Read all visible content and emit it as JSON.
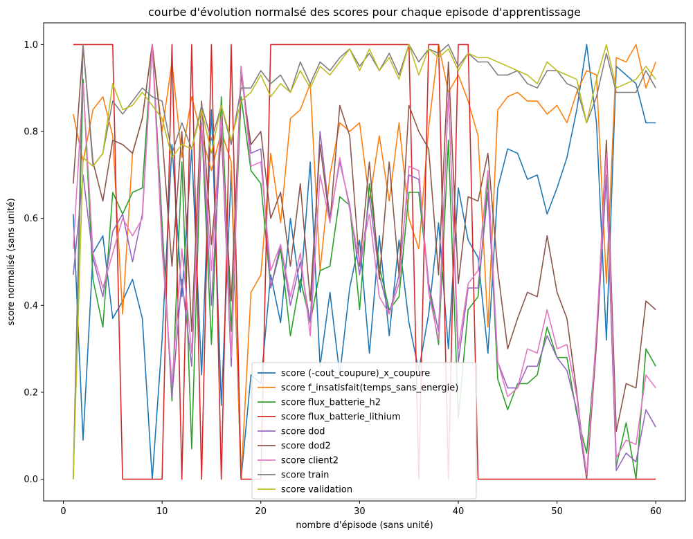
{
  "chart_data": {
    "type": "line",
    "title": "courbe d'évolution normalsé des scores pour chaque episode d'apprentissage",
    "xlabel": "nombre d'épisode (sans unité)",
    "ylabel": "score normalisé (sans unité)",
    "xlim": [
      -2,
      63
    ],
    "ylim": [
      -0.05,
      1.05
    ],
    "xticks": [
      0,
      10,
      20,
      30,
      40,
      50,
      60
    ],
    "yticks": [
      0.0,
      0.2,
      0.4,
      0.6,
      0.8,
      1.0
    ],
    "xtick_labels": [
      "0",
      "10",
      "20",
      "30",
      "40",
      "50",
      "60"
    ],
    "ytick_labels": [
      "0.0",
      "0.2",
      "0.4",
      "0.6",
      "0.8",
      "1.0"
    ],
    "grid": false,
    "legend_position": "bottom-center",
    "x": [
      1,
      2,
      3,
      4,
      5,
      6,
      7,
      8,
      9,
      10,
      11,
      12,
      13,
      14,
      15,
      16,
      17,
      18,
      19,
      20,
      21,
      22,
      23,
      24,
      25,
      26,
      27,
      28,
      29,
      30,
      31,
      32,
      33,
      34,
      35,
      36,
      37,
      38,
      39,
      40,
      41,
      42,
      43,
      44,
      45,
      46,
      47,
      48,
      49,
      50,
      51,
      52,
      53,
      54,
      55,
      56,
      57,
      58,
      59,
      60
    ],
    "series": [
      {
        "name": "score (-cout_coupure)_x_coupure",
        "color": "#1f77b4",
        "values": [
          0.61,
          0.09,
          0.52,
          0.56,
          0.37,
          0.41,
          0.46,
          0.37,
          0.0,
          0.32,
          0.77,
          0.42,
          0.76,
          0.24,
          0.85,
          0.17,
          0.71,
          0.0,
          0.24,
          0.22,
          0.47,
          0.36,
          0.6,
          0.43,
          0.73,
          0.26,
          0.43,
          0.24,
          0.44,
          0.55,
          0.29,
          0.56,
          0.33,
          0.55,
          0.36,
          0.25,
          0.38,
          0.59,
          0.3,
          0.67,
          0.55,
          0.51,
          0.29,
          0.67,
          0.76,
          0.75,
          0.69,
          0.7,
          0.61,
          0.67,
          0.74,
          0.85,
          1.0,
          0.82,
          0.32,
          0.95,
          0.93,
          0.91,
          0.82,
          0.82
        ]
      },
      {
        "name": "score f_insatisfait(temps_sans_energie)",
        "color": "#ff7f0e",
        "values": [
          0.84,
          0.73,
          0.85,
          0.88,
          0.79,
          0.38,
          0.75,
          0.83,
          1.0,
          0.8,
          0.96,
          0.74,
          0.88,
          0.79,
          0.71,
          0.8,
          0.73,
          0.0,
          0.43,
          0.47,
          0.75,
          0.59,
          0.83,
          0.85,
          0.91,
          0.48,
          0.7,
          0.82,
          0.8,
          0.82,
          0.64,
          0.79,
          0.64,
          0.82,
          0.6,
          0.53,
          0.81,
          1.0,
          0.89,
          0.93,
          0.87,
          0.79,
          0.35,
          0.85,
          0.88,
          0.89,
          0.87,
          0.87,
          0.84,
          0.86,
          0.82,
          0.89,
          0.94,
          0.93,
          0.45,
          0.97,
          0.96,
          1.0,
          0.9,
          0.96
        ]
      },
      {
        "name": "score flux_batterie_h2",
        "color": "#2ca02c",
        "values": [
          0.0,
          0.92,
          0.46,
          0.35,
          0.66,
          0.61,
          0.66,
          0.67,
          1.0,
          0.59,
          0.18,
          0.73,
          0.07,
          0.82,
          0.31,
          0.88,
          0.34,
          0.88,
          0.71,
          0.68,
          0.44,
          0.53,
          0.33,
          0.46,
          0.36,
          0.48,
          0.49,
          0.65,
          0.63,
          0.39,
          0.68,
          0.49,
          0.39,
          0.42,
          0.66,
          0.66,
          0.45,
          0.31,
          0.78,
          0.14,
          0.39,
          0.42,
          0.69,
          0.23,
          0.16,
          0.22,
          0.22,
          0.24,
          0.35,
          0.28,
          0.28,
          0.15,
          0.06,
          0.32,
          0.7,
          0.03,
          0.13,
          0.0,
          0.3,
          0.26
        ]
      },
      {
        "name": "score flux_batterie_lithium",
        "color": "#d62728",
        "values": [
          1.0,
          1.0,
          1.0,
          1.0,
          1.0,
          0.0,
          0.0,
          0.0,
          0.0,
          0.0,
          1.0,
          0.0,
          1.0,
          0.0,
          1.0,
          0.0,
          1.0,
          0.0,
          0.0,
          0.0,
          1.0,
          1.0,
          1.0,
          1.0,
          1.0,
          1.0,
          1.0,
          1.0,
          1.0,
          1.0,
          1.0,
          1.0,
          1.0,
          1.0,
          1.0,
          0.0,
          1.0,
          1.0,
          0.0,
          1.0,
          1.0,
          0.0,
          0.0,
          0.0,
          0.0,
          0.0,
          0.0,
          0.0,
          0.0,
          0.0,
          0.0,
          0.0,
          0.0,
          0.0,
          0.0,
          0.0,
          0.0,
          0.0,
          0.0,
          0.0
        ]
      },
      {
        "name": "score dod",
        "color": "#9467bd",
        "values": [
          0.47,
          0.7,
          0.51,
          0.42,
          0.57,
          0.61,
          0.5,
          0.61,
          1.0,
          0.56,
          0.19,
          0.46,
          0.26,
          0.82,
          0.4,
          0.81,
          0.26,
          0.95,
          0.75,
          0.76,
          0.44,
          0.54,
          0.4,
          0.5,
          0.36,
          0.8,
          0.6,
          0.73,
          0.63,
          0.47,
          0.65,
          0.47,
          0.38,
          0.47,
          0.7,
          0.69,
          0.45,
          0.34,
          0.89,
          0.27,
          0.44,
          0.44,
          0.66,
          0.27,
          0.21,
          0.21,
          0.26,
          0.26,
          0.33,
          0.28,
          0.25,
          0.16,
          0.0,
          0.31,
          0.7,
          0.02,
          0.06,
          0.04,
          0.16,
          0.12
        ]
      },
      {
        "name": "score dod2",
        "color": "#8c564b",
        "values": [
          0.68,
          1.0,
          0.73,
          0.64,
          0.78,
          0.77,
          0.75,
          0.83,
          1.0,
          0.79,
          0.49,
          0.8,
          0.34,
          0.87,
          0.54,
          0.79,
          0.41,
          0.93,
          0.77,
          0.8,
          0.6,
          0.66,
          0.49,
          0.68,
          0.41,
          0.77,
          0.59,
          0.86,
          0.79,
          0.49,
          0.73,
          0.46,
          0.73,
          0.47,
          0.86,
          0.8,
          0.76,
          0.47,
          0.96,
          0.45,
          0.65,
          0.64,
          0.75,
          0.48,
          0.3,
          0.37,
          0.43,
          0.42,
          0.56,
          0.43,
          0.37,
          0.2,
          0.0,
          0.32,
          0.78,
          0.11,
          0.22,
          0.21,
          0.41,
          0.39
        ]
      },
      {
        "name": "score client2",
        "color": "#e377c2",
        "values": [
          0.53,
          0.91,
          0.52,
          0.44,
          0.52,
          0.6,
          0.56,
          0.6,
          1.0,
          0.53,
          0.22,
          0.53,
          0.29,
          0.82,
          0.48,
          0.84,
          0.28,
          0.95,
          0.72,
          0.73,
          0.48,
          0.54,
          0.42,
          0.52,
          0.33,
          0.7,
          0.59,
          0.74,
          0.62,
          0.5,
          0.61,
          0.42,
          0.38,
          0.45,
          0.72,
          0.71,
          0.43,
          0.32,
          0.89,
          0.3,
          0.45,
          0.48,
          0.71,
          0.27,
          0.19,
          0.21,
          0.3,
          0.29,
          0.39,
          0.3,
          0.31,
          0.19,
          0.01,
          0.34,
          0.75,
          0.05,
          0.09,
          0.08,
          0.24,
          0.21
        ]
      },
      {
        "name": "score train",
        "color": "#7f7f7f",
        "values": [
          0.0,
          1.0,
          0.72,
          0.75,
          0.87,
          0.84,
          0.87,
          0.9,
          0.88,
          0.87,
          0.75,
          0.82,
          0.76,
          0.86,
          0.78,
          0.86,
          0.77,
          0.9,
          0.9,
          0.94,
          0.91,
          0.93,
          0.89,
          0.96,
          0.91,
          0.96,
          0.94,
          0.97,
          0.99,
          0.95,
          0.98,
          0.94,
          0.98,
          0.93,
          1.0,
          0.96,
          0.99,
          0.98,
          1.0,
          0.95,
          0.98,
          0.96,
          0.96,
          0.93,
          0.93,
          0.94,
          0.91,
          0.9,
          0.94,
          0.94,
          0.91,
          0.9,
          0.82,
          0.88,
          0.98,
          0.89,
          0.89,
          0.89,
          0.94,
          0.9
        ]
      },
      {
        "name": "score validation",
        "color": "#bcbd22",
        "values": [
          0.0,
          0.74,
          0.72,
          0.75,
          0.91,
          0.85,
          0.86,
          0.89,
          0.86,
          0.83,
          0.74,
          0.77,
          0.76,
          0.85,
          0.75,
          0.86,
          0.78,
          0.87,
          0.89,
          0.93,
          0.88,
          0.91,
          0.89,
          0.94,
          0.9,
          0.95,
          0.93,
          0.96,
          0.99,
          0.94,
          0.99,
          0.94,
          0.97,
          0.92,
          1.0,
          0.93,
          0.99,
          0.97,
          0.99,
          0.94,
          0.98,
          0.97,
          0.97,
          0.96,
          0.95,
          0.94,
          0.93,
          0.91,
          0.96,
          0.94,
          0.93,
          0.92,
          0.82,
          0.92,
          1.0,
          0.9,
          0.91,
          0.92,
          0.95,
          0.92
        ]
      }
    ]
  }
}
